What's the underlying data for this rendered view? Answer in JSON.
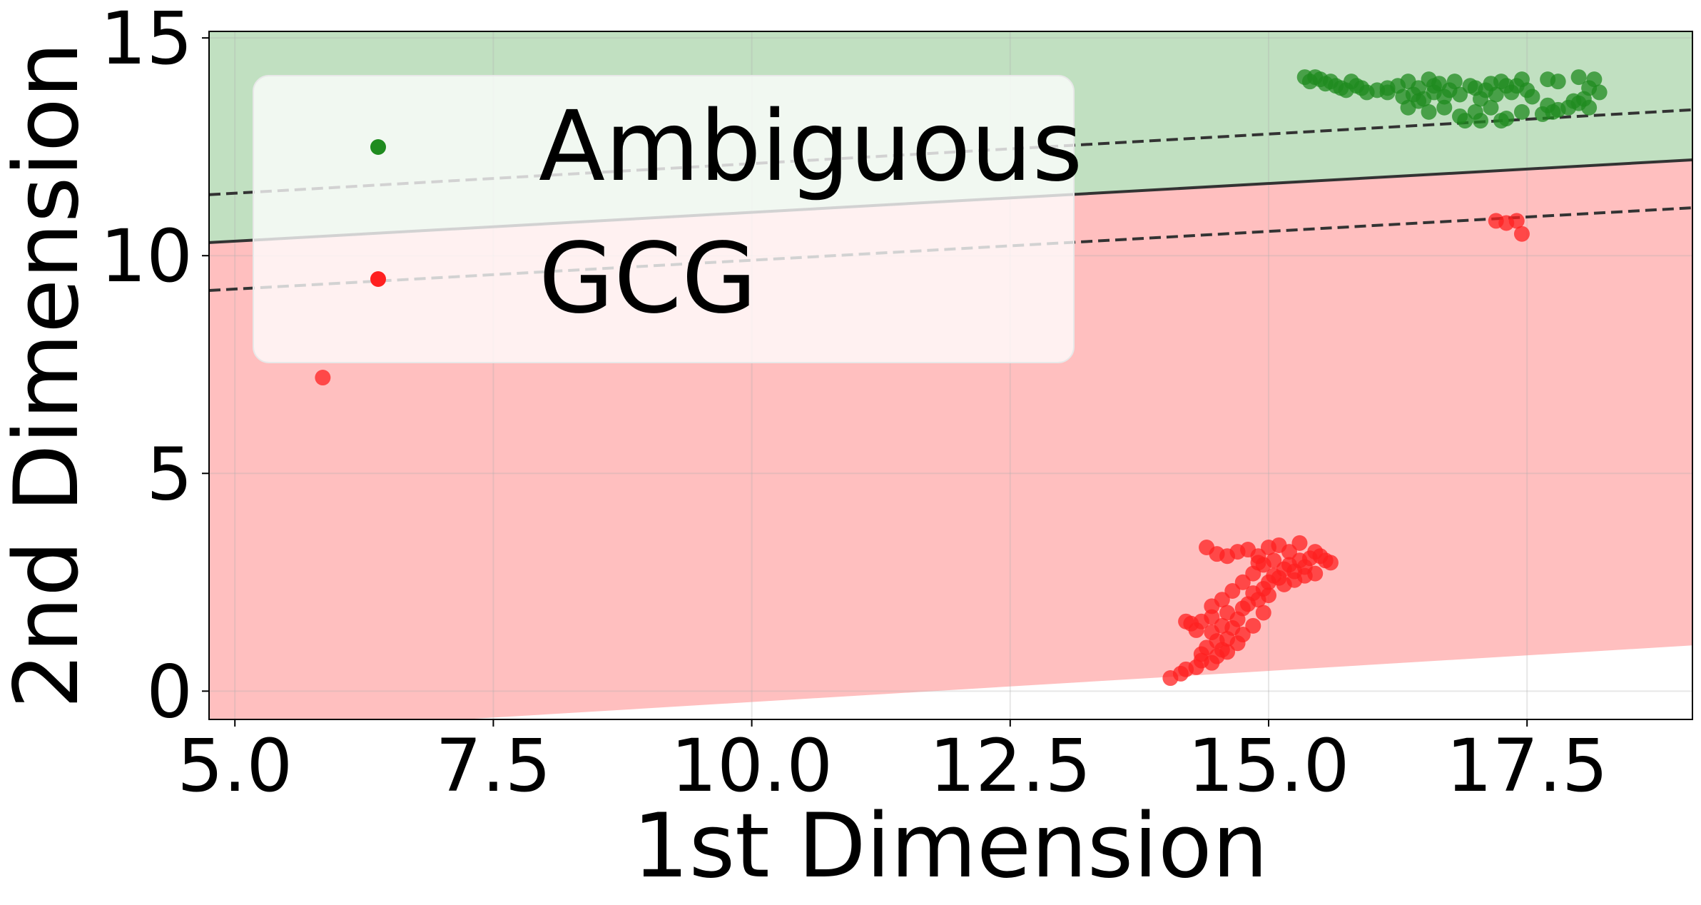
{
  "chart_data": {
    "type": "scatter",
    "title": "",
    "xlabel": "1st Dimension",
    "ylabel": "2nd Dimension",
    "xlim": [
      4.75,
      19.1
    ],
    "ylim": [
      -0.65,
      15.15
    ],
    "xticks": [
      5.0,
      7.5,
      10.0,
      12.5,
      15.0,
      17.5
    ],
    "xtick_labels": [
      "5.0",
      "7.5",
      "10.0",
      "12.5",
      "15.0",
      "17.5"
    ],
    "yticks": [
      0,
      5,
      10,
      15
    ],
    "ytick_labels": [
      "0",
      "5",
      "10",
      "15"
    ],
    "grid": true,
    "legend_position": "upper-left",
    "regions": [
      {
        "name": "Ambiguous",
        "color": "#c1e0c1",
        "above_line": "decision"
      },
      {
        "name": "GCG",
        "color": "#ffbfbf",
        "between": [
          "lower",
          "decision"
        ]
      }
    ],
    "lines": [
      {
        "name": "decision",
        "style": "solid",
        "color": "#333333",
        "x": [
          4.75,
          19.1
        ],
        "y": [
          10.3,
          12.2
        ]
      },
      {
        "name": "upper-margin",
        "style": "dashed",
        "color": "#333333",
        "x": [
          4.75,
          19.1
        ],
        "y": [
          11.4,
          13.35
        ]
      },
      {
        "name": "lower-margin",
        "style": "dashed",
        "color": "#333333",
        "x": [
          4.75,
          19.1
        ],
        "y": [
          9.2,
          11.1
        ]
      },
      {
        "name": "lower",
        "style": "none",
        "color": "#ffbfbf",
        "x": [
          4.75,
          19.1
        ],
        "y": [
          -1.0,
          1.05
        ]
      }
    ],
    "series": [
      {
        "name": "Ambiguous",
        "color": "#1f8b1f",
        "points": [
          [
            15.35,
            14.1
          ],
          [
            15.4,
            14.0
          ],
          [
            15.45,
            14.1
          ],
          [
            15.5,
            14.05
          ],
          [
            15.55,
            13.95
          ],
          [
            15.6,
            14.0
          ],
          [
            15.65,
            13.9
          ],
          [
            15.7,
            13.85
          ],
          [
            15.75,
            13.8
          ],
          [
            15.8,
            14.0
          ],
          [
            15.85,
            13.9
          ],
          [
            15.9,
            13.85
          ],
          [
            16.05,
            13.8
          ],
          [
            16.15,
            13.75
          ],
          [
            16.25,
            13.9
          ],
          [
            16.3,
            13.65
          ],
          [
            16.35,
            14.0
          ],
          [
            16.4,
            13.7
          ],
          [
            16.45,
            13.85
          ],
          [
            16.5,
            13.6
          ],
          [
            16.55,
            14.05
          ],
          [
            16.6,
            13.75
          ],
          [
            16.65,
            13.95
          ],
          [
            16.7,
            13.65
          ],
          [
            16.75,
            13.8
          ],
          [
            16.8,
            14.0
          ],
          [
            16.85,
            13.7
          ],
          [
            16.95,
            13.9
          ],
          [
            17.0,
            13.85
          ],
          [
            17.05,
            13.6
          ],
          [
            17.1,
            13.8
          ],
          [
            17.15,
            13.95
          ],
          [
            17.2,
            13.7
          ],
          [
            17.25,
            14.0
          ],
          [
            17.3,
            13.9
          ],
          [
            17.35,
            13.75
          ],
          [
            17.4,
            13.9
          ],
          [
            17.45,
            14.05
          ],
          [
            17.5,
            13.8
          ],
          [
            16.35,
            13.4
          ],
          [
            16.45,
            13.55
          ],
          [
            16.55,
            13.3
          ],
          [
            16.7,
            13.4
          ],
          [
            16.85,
            13.2
          ],
          [
            17.0,
            13.3
          ],
          [
            17.15,
            13.4
          ],
          [
            17.3,
            13.15
          ],
          [
            17.45,
            13.3
          ],
          [
            17.65,
            13.25
          ],
          [
            17.7,
            13.45
          ],
          [
            17.8,
            13.35
          ],
          [
            17.9,
            13.4
          ],
          [
            18.0,
            13.5
          ],
          [
            18.05,
            13.6
          ],
          [
            18.1,
            13.85
          ],
          [
            18.15,
            14.05
          ],
          [
            18.2,
            13.75
          ],
          [
            18.1,
            13.4
          ],
          [
            17.8,
            14.0
          ],
          [
            17.7,
            14.05
          ],
          [
            18.0,
            14.1
          ],
          [
            17.95,
            13.55
          ],
          [
            16.9,
            13.1
          ],
          [
            17.05,
            13.1
          ],
          [
            17.25,
            13.1
          ],
          [
            16.15,
            13.85
          ],
          [
            16.6,
            13.9
          ],
          [
            17.55,
            13.65
          ],
          [
            17.75,
            13.3
          ],
          [
            15.95,
            13.75
          ]
        ]
      },
      {
        "name": "GCG",
        "color": "#ff2020",
        "points": [
          [
            5.85,
            7.2
          ],
          [
            17.2,
            10.8
          ],
          [
            17.3,
            10.75
          ],
          [
            17.4,
            10.8
          ],
          [
            17.45,
            10.5
          ],
          [
            14.05,
            0.3
          ],
          [
            14.15,
            0.4
          ],
          [
            14.2,
            0.5
          ],
          [
            14.3,
            0.55
          ],
          [
            14.35,
            0.7
          ],
          [
            14.45,
            0.65
          ],
          [
            14.5,
            0.8
          ],
          [
            14.55,
            0.95
          ],
          [
            14.4,
            1.0
          ],
          [
            14.5,
            1.15
          ],
          [
            14.6,
            1.2
          ],
          [
            14.45,
            1.35
          ],
          [
            14.55,
            1.5
          ],
          [
            14.65,
            1.45
          ],
          [
            14.7,
            1.65
          ],
          [
            14.6,
            1.8
          ],
          [
            14.75,
            1.9
          ],
          [
            14.8,
            2.0
          ],
          [
            14.9,
            2.1
          ],
          [
            14.85,
            2.25
          ],
          [
            14.95,
            2.35
          ],
          [
            15.0,
            2.5
          ],
          [
            15.05,
            2.65
          ],
          [
            15.1,
            2.6
          ],
          [
            15.15,
            2.8
          ],
          [
            15.2,
            2.9
          ],
          [
            15.25,
            2.75
          ],
          [
            15.3,
            3.0
          ],
          [
            15.35,
            2.85
          ],
          [
            15.4,
            3.05
          ],
          [
            15.45,
            3.2
          ],
          [
            15.5,
            3.1
          ],
          [
            15.55,
            3.0
          ],
          [
            15.6,
            2.95
          ],
          [
            14.2,
            1.6
          ],
          [
            14.25,
            1.55
          ],
          [
            14.35,
            1.6
          ],
          [
            14.45,
            1.7
          ],
          [
            14.3,
            1.4
          ],
          [
            14.6,
            0.9
          ],
          [
            14.7,
            1.1
          ],
          [
            14.75,
            1.3
          ],
          [
            14.85,
            1.5
          ],
          [
            14.95,
            1.8
          ],
          [
            14.4,
            3.3
          ],
          [
            14.5,
            3.15
          ],
          [
            14.6,
            3.1
          ],
          [
            14.7,
            3.2
          ],
          [
            14.8,
            3.25
          ],
          [
            14.9,
            3.1
          ],
          [
            15.0,
            3.3
          ],
          [
            15.1,
            3.35
          ],
          [
            15.2,
            3.2
          ],
          [
            15.05,
            3.0
          ],
          [
            14.95,
            2.9
          ],
          [
            14.85,
            2.7
          ],
          [
            14.75,
            2.5
          ],
          [
            14.65,
            2.3
          ],
          [
            14.55,
            2.1
          ],
          [
            14.45,
            1.95
          ],
          [
            15.15,
            2.45
          ],
          [
            15.25,
            2.55
          ],
          [
            15.35,
            2.65
          ],
          [
            15.45,
            2.7
          ],
          [
            15.0,
            2.2
          ],
          [
            14.9,
            2.95
          ],
          [
            15.3,
            3.4
          ],
          [
            14.35,
            0.85
          ]
        ]
      }
    ]
  },
  "legend": {
    "items": [
      {
        "label": "Ambiguous",
        "color": "#1f8b1f"
      },
      {
        "label": "GCG",
        "color": "#ff2020"
      }
    ]
  }
}
